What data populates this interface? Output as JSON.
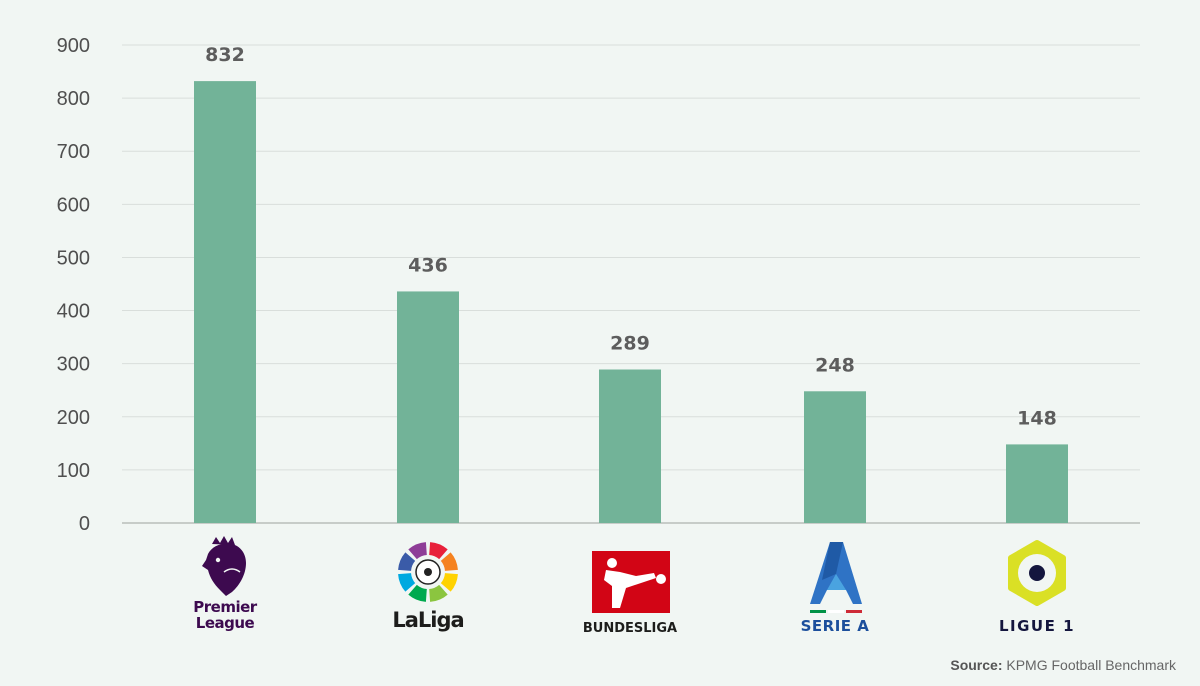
{
  "chart_data": {
    "type": "bar",
    "categories": [
      "Premier League",
      "LaLiga",
      "BUNDESLIGA",
      "SERIE A",
      "LIGUE 1"
    ],
    "values": [
      832,
      436,
      289,
      248,
      148
    ],
    "data_labels": [
      "832",
      "436",
      "289",
      "248",
      "148"
    ],
    "ylim": [
      0,
      900
    ],
    "yticks": [
      0,
      100,
      200,
      300,
      400,
      500,
      600,
      700,
      800,
      900
    ],
    "grid": true,
    "xlabel": "",
    "ylabel": "",
    "title": "",
    "bar_color": "#72b398"
  },
  "logos": [
    {
      "icon": "premier-league-logo",
      "lines": [
        "Premier",
        "League"
      ],
      "color": "#3d0a4f"
    },
    {
      "icon": "laliga-logo",
      "lines": [
        "LaLiga"
      ],
      "color": "#1d1d1b"
    },
    {
      "icon": "bundesliga-logo",
      "lines": [
        "BUNDESLIGA"
      ],
      "color": "#d20515"
    },
    {
      "icon": "serie-a-logo",
      "lines": [
        "SERIE A"
      ],
      "color": "#1c4f9c"
    },
    {
      "icon": "ligue-1-logo",
      "lines": [
        "LIGUE 1"
      ],
      "color": "#dae025"
    }
  ],
  "source": {
    "label": "Source:",
    "text": "KPMG Football Benchmark"
  }
}
